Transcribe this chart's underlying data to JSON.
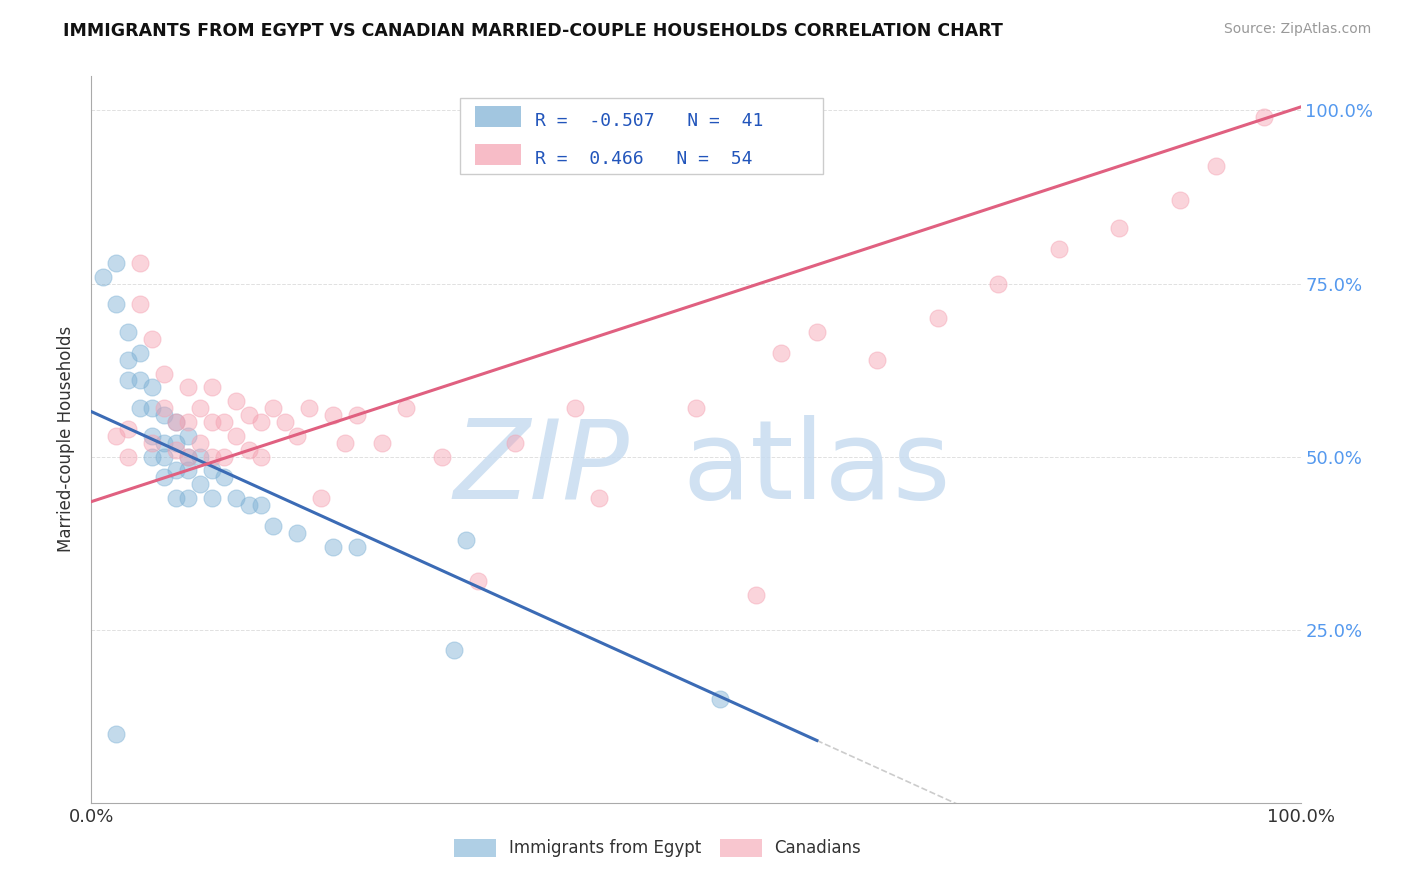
{
  "title": "IMMIGRANTS FROM EGYPT VS CANADIAN MARRIED-COUPLE HOUSEHOLDS CORRELATION CHART",
  "source": "Source: ZipAtlas.com",
  "ylabel": "Married-couple Households",
  "legend_label1": "Immigrants from Egypt",
  "legend_label2": "Canadians",
  "r1": -0.507,
  "n1": 41,
  "r2": 0.466,
  "n2": 54,
  "blue_color": "#7BAFD4",
  "pink_color": "#F4A0B0",
  "blue_line_color": "#3B6BB5",
  "pink_line_color": "#E06080",
  "watermark_zip": "ZIP",
  "watermark_atlas": "atlas",
  "background_color": "#FFFFFF",
  "grid_color": "#CCCCCC",
  "blue_scatter_x": [
    0.01,
    0.02,
    0.02,
    0.03,
    0.03,
    0.03,
    0.04,
    0.04,
    0.04,
    0.05,
    0.05,
    0.05,
    0.05,
    0.06,
    0.06,
    0.06,
    0.06,
    0.07,
    0.07,
    0.07,
    0.07,
    0.08,
    0.08,
    0.08,
    0.08,
    0.09,
    0.09,
    0.1,
    0.1,
    0.11,
    0.12,
    0.13,
    0.14,
    0.15,
    0.17,
    0.2,
    0.22,
    0.3,
    0.31,
    0.52,
    0.02
  ],
  "blue_scatter_y": [
    0.76,
    0.78,
    0.72,
    0.68,
    0.64,
    0.61,
    0.65,
    0.61,
    0.57,
    0.6,
    0.57,
    0.53,
    0.5,
    0.56,
    0.52,
    0.5,
    0.47,
    0.55,
    0.52,
    0.48,
    0.44,
    0.53,
    0.5,
    0.48,
    0.44,
    0.5,
    0.46,
    0.48,
    0.44,
    0.47,
    0.44,
    0.43,
    0.43,
    0.4,
    0.39,
    0.37,
    0.37,
    0.22,
    0.38,
    0.15,
    0.1
  ],
  "pink_scatter_x": [
    0.02,
    0.03,
    0.03,
    0.04,
    0.04,
    0.05,
    0.05,
    0.06,
    0.06,
    0.07,
    0.07,
    0.08,
    0.08,
    0.08,
    0.09,
    0.09,
    0.1,
    0.1,
    0.1,
    0.11,
    0.11,
    0.12,
    0.12,
    0.13,
    0.13,
    0.14,
    0.14,
    0.15,
    0.16,
    0.17,
    0.18,
    0.19,
    0.2,
    0.21,
    0.22,
    0.24,
    0.26,
    0.29,
    0.32,
    0.35,
    0.4,
    0.42,
    0.5,
    0.55,
    0.57,
    0.6,
    0.65,
    0.7,
    0.75,
    0.8,
    0.85,
    0.9,
    0.93,
    0.97
  ],
  "pink_scatter_y": [
    0.53,
    0.54,
    0.5,
    0.78,
    0.72,
    0.67,
    0.52,
    0.62,
    0.57,
    0.55,
    0.51,
    0.6,
    0.55,
    0.5,
    0.57,
    0.52,
    0.6,
    0.55,
    0.5,
    0.55,
    0.5,
    0.58,
    0.53,
    0.56,
    0.51,
    0.55,
    0.5,
    0.57,
    0.55,
    0.53,
    0.57,
    0.44,
    0.56,
    0.52,
    0.56,
    0.52,
    0.57,
    0.5,
    0.32,
    0.52,
    0.57,
    0.44,
    0.57,
    0.3,
    0.65,
    0.68,
    0.64,
    0.7,
    0.75,
    0.8,
    0.83,
    0.87,
    0.92,
    0.99
  ],
  "xlim": [
    0.0,
    1.0
  ],
  "ylim": [
    0.0,
    1.05
  ],
  "yticks": [
    0.25,
    0.5,
    0.75,
    1.0
  ],
  "ytick_labels_right": [
    "25.0%",
    "50.0%",
    "75.0%",
    "100.0%"
  ],
  "xtick_labels": [
    "0.0%",
    "100.0%"
  ],
  "blue_line_x0": 0.0,
  "blue_line_y0": 0.565,
  "blue_line_x1": 0.6,
  "blue_line_y1": 0.09,
  "pink_line_x0": 0.0,
  "pink_line_y0": 0.435,
  "pink_line_x1": 1.0,
  "pink_line_y1": 1.005
}
